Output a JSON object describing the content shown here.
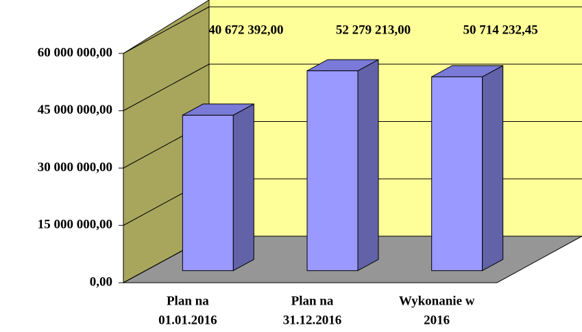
{
  "chart_data": {
    "type": "bar3d",
    "categories": [
      [
        "Plan na",
        "01.01.2016"
      ],
      [
        "Plan na",
        "31.12.2016"
      ],
      [
        "Wykonanie w",
        "2016"
      ]
    ],
    "values": [
      40672392,
      52279213,
      50714232.45
    ],
    "value_labels": [
      "40 672 392,00",
      "52 279 213,00",
      "50 714 232,45"
    ],
    "color": "#9999ff",
    "ylim": [
      0,
      60000000
    ],
    "yticks": [
      {
        "value": 0,
        "label": "0,00"
      },
      {
        "value": 15000000,
        "label": "15 000 000,00"
      },
      {
        "value": 30000000,
        "label": "30 000 000,00"
      },
      {
        "value": 45000000,
        "label": "45 000 000,00"
      },
      {
        "value": 60000000,
        "label": "60 000 000,00"
      }
    ],
    "grid": true
  }
}
